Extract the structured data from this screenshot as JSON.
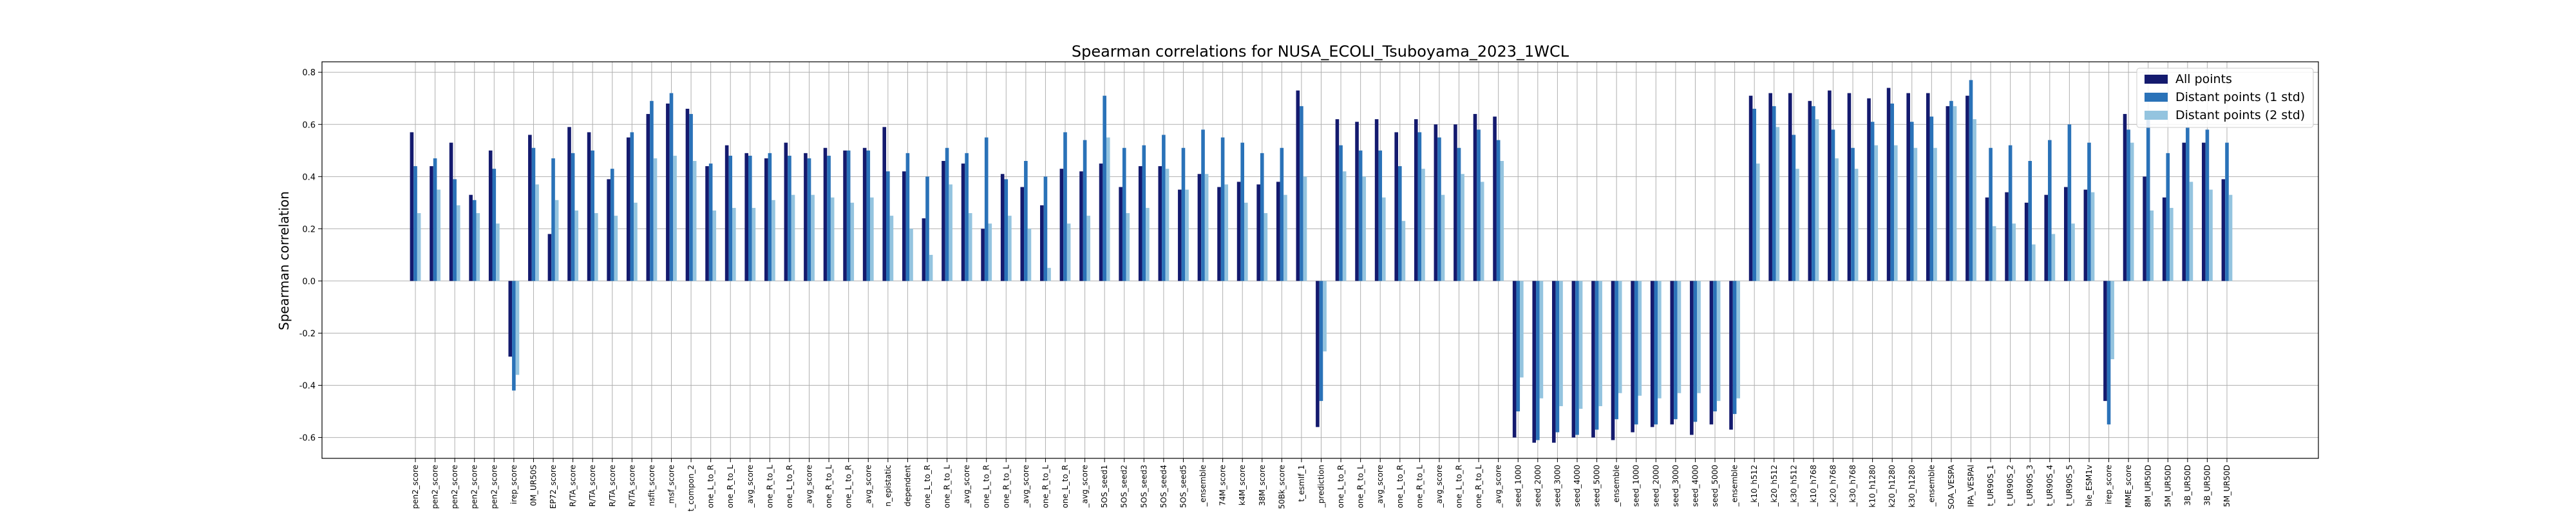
{
  "chart_data": {
    "type": "bar",
    "title": "Spearman correlations for NUSA_ECOLI_Tsuboyama_2023_1WCL",
    "xlabel": "",
    "ylabel": "Spearman correlation",
    "ylim": [
      -0.68,
      0.84
    ],
    "yticks": [
      -0.6,
      -0.4,
      -0.2,
      0.0,
      0.2,
      0.4,
      0.6,
      0.8
    ],
    "grid": true,
    "legend_position": "top-right",
    "categories": [
      "pen2_score",
      "pen2_score",
      "pen2_score",
      "pen2_score",
      "pen2_score",
      "irep_score",
      "0M_UR50S",
      "EP72_score",
      "R/TA_score",
      "R/TA_score",
      "R/TA_score",
      "R/TA_score",
      "nsfit_score",
      "_msf_score",
      "t_compon_2",
      "one_L_to_R",
      "one_R_to_L",
      "_avg_score",
      "one_R_to_L",
      "one_L_to_R",
      "_avg_score",
      "one_R_to_L",
      "one_L_to_R",
      "_avg_score",
      "n_epistatic",
      "dependent",
      "one_L_to_R",
      "one_R_to_L",
      "_avg_score",
      "one_L_to_R",
      "one_R_to_L",
      "_avg_score",
      "one_R_to_L",
      "one_L_to_R",
      "_avg_score",
      "5OS_seed1",
      "5OS_seed2",
      "5OS_seed3",
      "5OS_seed4",
      "5OS_seed5",
      "_ensemble",
      "74M_score",
      "k4M_score",
      "38M_score",
      "50Bk_score",
      "t_esmIf_1",
      "_prediction",
      "one_L_to_R",
      "one_R_to_L",
      "_avg_score",
      "one_L_to_R",
      "one_R_to_L",
      "_avg_score",
      "one_L_to_R",
      "one_R_to_L",
      "_avg_score",
      "seed_1000",
      "seed_2000",
      "seed_3000",
      "seed_4000",
      "seed_5000",
      "_ensemble",
      "seed_1000",
      "seed_2000",
      "seed_3000",
      "seed_4000",
      "seed_5000",
      "_ensemble",
      "_k10_h512",
      "_k20_h512",
      "_k30_h512",
      "_k10_h768",
      "_k20_h768",
      "_k30_h768",
      "k10_h1280",
      "k20_h1280",
      "k30_h1280",
      "_ensemble",
      "SOA_VESPA",
      "IPA_VESPAl",
      "t_UR90S_1",
      "t_UR90S_2",
      "t_UR90S_3",
      "t_UR90S_4",
      "t_UR90S_5",
      "ble_ESM1v",
      "irep_score",
      "MME_score",
      "8M_UR50D",
      "5M_UR50D",
      "3B_UR50D",
      "3B_UR50D",
      "5M_UR50D"
    ],
    "series": [
      {
        "name": "All points",
        "color": "#141a6e",
        "values": [
          0.57,
          0.44,
          0.53,
          0.33,
          0.5,
          -0.29,
          0.56,
          0.18,
          0.59,
          0.57,
          0.39,
          0.55,
          0.64,
          0.68,
          0.66,
          0.44,
          0.52,
          0.49,
          0.47,
          0.53,
          0.49,
          0.51,
          0.5,
          0.51,
          0.59,
          0.42,
          0.24,
          0.46,
          0.45,
          0.2,
          0.41,
          0.36,
          0.29,
          0.43,
          0.42,
          0.45,
          0.36,
          0.44,
          0.44,
          0.35,
          0.41,
          0.36,
          0.38,
          0.37,
          0.38,
          0.73,
          -0.56,
          0.62,
          0.61,
          0.62,
          0.57,
          0.62,
          0.6,
          0.6,
          0.64,
          0.63,
          -0.6,
          -0.62,
          -0.62,
          -0.6,
          -0.6,
          -0.61,
          -0.58,
          -0.56,
          -0.55,
          -0.59,
          -0.55,
          -0.57,
          0.71,
          0.72,
          0.72,
          0.69,
          0.73,
          0.72,
          0.7,
          0.74,
          0.72,
          0.72,
          0.67,
          0.71,
          0.32,
          0.34,
          0.3,
          0.33,
          0.36,
          0.35,
          -0.46,
          0.64,
          0.4,
          0.32,
          0.53,
          0.53,
          0.39
        ]
      },
      {
        "name": "Distant points (1 std)",
        "color": "#2a72b8",
        "values": [
          0.44,
          0.47,
          0.39,
          0.31,
          0.43,
          -0.42,
          0.51,
          0.47,
          0.49,
          0.5,
          0.43,
          0.57,
          0.69,
          0.72,
          0.64,
          0.45,
          0.48,
          0.48,
          0.49,
          0.48,
          0.47,
          0.48,
          0.5,
          0.5,
          0.42,
          0.49,
          0.4,
          0.51,
          0.49,
          0.55,
          0.39,
          0.46,
          0.4,
          0.57,
          0.54,
          0.71,
          0.51,
          0.52,
          0.56,
          0.51,
          0.58,
          0.55,
          0.53,
          0.49,
          0.51,
          0.67,
          -0.46,
          0.52,
          0.5,
          0.5,
          0.44,
          0.57,
          0.55,
          0.51,
          0.58,
          0.54,
          -0.5,
          -0.61,
          -0.58,
          -0.59,
          -0.57,
          -0.53,
          -0.55,
          -0.55,
          -0.53,
          -0.54,
          -0.5,
          -0.51,
          0.66,
          0.67,
          0.56,
          0.67,
          0.58,
          0.51,
          0.61,
          0.68,
          0.61,
          0.63,
          0.69,
          0.77,
          0.51,
          0.52,
          0.46,
          0.54,
          0.6,
          0.53,
          -0.55,
          0.58,
          0.62,
          0.49,
          0.59,
          0.58,
          0.53
        ]
      },
      {
        "name": "Distant points (2 std)",
        "color": "#94c4df",
        "values": [
          0.26,
          0.35,
          0.29,
          0.26,
          0.22,
          -0.36,
          0.37,
          0.31,
          0.27,
          0.26,
          0.25,
          0.3,
          0.47,
          0.48,
          0.46,
          0.27,
          0.28,
          0.28,
          0.31,
          0.33,
          0.33,
          0.32,
          0.3,
          0.32,
          0.25,
          0.2,
          0.1,
          0.37,
          0.26,
          0.22,
          0.25,
          0.2,
          0.05,
          0.22,
          0.25,
          0.55,
          0.26,
          0.28,
          0.43,
          0.35,
          0.41,
          0.37,
          0.3,
          0.26,
          0.33,
          0.4,
          -0.27,
          0.42,
          0.4,
          0.32,
          0.23,
          0.43,
          0.33,
          0.41,
          0.38,
          0.46,
          -0.37,
          -0.45,
          -0.48,
          -0.49,
          -0.48,
          -0.43,
          -0.44,
          -0.45,
          -0.43,
          -0.43,
          -0.46,
          -0.45,
          0.45,
          0.59,
          0.43,
          0.62,
          0.47,
          0.43,
          0.52,
          0.52,
          0.51,
          0.51,
          0.67,
          0.62,
          0.21,
          0.22,
          0.14,
          0.18,
          0.22,
          0.34,
          -0.3,
          0.53,
          0.27,
          0.28,
          0.38,
          0.35,
          0.33
        ]
      }
    ]
  }
}
